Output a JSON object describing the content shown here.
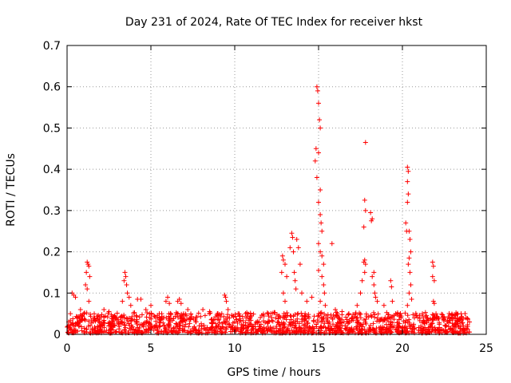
{
  "chart_data": {
    "type": "scatter",
    "title": "Day 231 of 2024, Rate Of TEC Index for receiver hkst",
    "xlabel": "GPS time / hours",
    "ylabel": "ROTI / TECUs",
    "xlim": [
      0,
      25
    ],
    "ylim": [
      0,
      0.7
    ],
    "xticks": [
      0,
      5,
      10,
      15,
      20,
      25
    ],
    "yticks": [
      0,
      0.1,
      0.2,
      0.3,
      0.4,
      0.5,
      0.6,
      0.7
    ],
    "xtick_labels": [
      "0",
      "5",
      "10",
      "15",
      "20",
      "25"
    ],
    "ytick_labels": [
      "0",
      "0.1",
      "0.2",
      "0.3",
      "0.4",
      "0.5",
      "0.6",
      "0.7"
    ],
    "grid": true,
    "marker": "+",
    "color": "#ff0000",
    "baseline_note": "dense band of points between ~0 and ~0.05 across 0-24 h",
    "points": [
      [
        0.1,
        0.03
      ],
      [
        0.2,
        0.05
      ],
      [
        0.3,
        0.1
      ],
      [
        0.4,
        0.095
      ],
      [
        0.5,
        0.09
      ],
      [
        0.6,
        0.04
      ],
      [
        0.8,
        0.06
      ],
      [
        1.0,
        0.05
      ],
      [
        1.1,
        0.12
      ],
      [
        1.15,
        0.15
      ],
      [
        1.2,
        0.175
      ],
      [
        1.25,
        0.17
      ],
      [
        1.3,
        0.165
      ],
      [
        1.35,
        0.14
      ],
      [
        1.2,
        0.11
      ],
      [
        1.3,
        0.08
      ],
      [
        1.6,
        0.04
      ],
      [
        2.2,
        0.06
      ],
      [
        2.5,
        0.055
      ],
      [
        2.9,
        0.04
      ],
      [
        3.3,
        0.08
      ],
      [
        3.4,
        0.13
      ],
      [
        3.45,
        0.15
      ],
      [
        3.5,
        0.14
      ],
      [
        3.55,
        0.12
      ],
      [
        3.6,
        0.1
      ],
      [
        3.7,
        0.09
      ],
      [
        3.8,
        0.07
      ],
      [
        4.2,
        0.085
      ],
      [
        4.4,
        0.085
      ],
      [
        4.7,
        0.06
      ],
      [
        5.0,
        0.07
      ],
      [
        5.5,
        0.05
      ],
      [
        5.9,
        0.08
      ],
      [
        6.0,
        0.09
      ],
      [
        6.1,
        0.075
      ],
      [
        6.6,
        0.08
      ],
      [
        6.7,
        0.085
      ],
      [
        6.8,
        0.075
      ],
      [
        7.2,
        0.06
      ],
      [
        8.1,
        0.06
      ],
      [
        8.5,
        0.055
      ],
      [
        9.0,
        0.05
      ],
      [
        9.4,
        0.095
      ],
      [
        9.45,
        0.09
      ],
      [
        9.5,
        0.08
      ],
      [
        9.6,
        0.06
      ],
      [
        10.2,
        0.05
      ],
      [
        11.0,
        0.045
      ],
      [
        12.0,
        0.05
      ],
      [
        12.8,
        0.15
      ],
      [
        12.85,
        0.19
      ],
      [
        12.9,
        0.18
      ],
      [
        13.0,
        0.17
      ],
      [
        13.1,
        0.14
      ],
      [
        12.9,
        0.1
      ],
      [
        13.0,
        0.08
      ],
      [
        13.3,
        0.21
      ],
      [
        13.4,
        0.245
      ],
      [
        13.45,
        0.235
      ],
      [
        13.5,
        0.2
      ],
      [
        13.55,
        0.15
      ],
      [
        13.6,
        0.13
      ],
      [
        13.7,
        0.23
      ],
      [
        13.8,
        0.21
      ],
      [
        13.9,
        0.17
      ],
      [
        13.65,
        0.11
      ],
      [
        14.0,
        0.1
      ],
      [
        14.3,
        0.08
      ],
      [
        14.6,
        0.09
      ],
      [
        14.8,
        0.42
      ],
      [
        14.85,
        0.45
      ],
      [
        14.9,
        0.6
      ],
      [
        14.95,
        0.59
      ],
      [
        15.0,
        0.56
      ],
      [
        15.05,
        0.52
      ],
      [
        15.1,
        0.5
      ],
      [
        15.0,
        0.44
      ],
      [
        14.9,
        0.38
      ],
      [
        15.1,
        0.35
      ],
      [
        15.0,
        0.32
      ],
      [
        15.1,
        0.29
      ],
      [
        15.15,
        0.27
      ],
      [
        15.2,
        0.25
      ],
      [
        15.0,
        0.22
      ],
      [
        15.1,
        0.2
      ],
      [
        15.2,
        0.19
      ],
      [
        15.3,
        0.17
      ],
      [
        15.0,
        0.155
      ],
      [
        15.2,
        0.14
      ],
      [
        15.3,
        0.12
      ],
      [
        15.35,
        0.1
      ],
      [
        15.1,
        0.08
      ],
      [
        15.4,
        0.07
      ],
      [
        15.8,
        0.22
      ],
      [
        16.0,
        0.06
      ],
      [
        16.4,
        0.055
      ],
      [
        16.8,
        0.05
      ],
      [
        17.3,
        0.07
      ],
      [
        17.5,
        0.1
      ],
      [
        17.6,
        0.13
      ],
      [
        17.7,
        0.175
      ],
      [
        17.75,
        0.18
      ],
      [
        17.8,
        0.17
      ],
      [
        17.75,
        0.15
      ],
      [
        17.8,
        0.465
      ],
      [
        17.75,
        0.325
      ],
      [
        17.8,
        0.3
      ],
      [
        17.7,
        0.26
      ],
      [
        18.1,
        0.295
      ],
      [
        18.2,
        0.28
      ],
      [
        18.15,
        0.275
      ],
      [
        18.2,
        0.14
      ],
      [
        18.3,
        0.15
      ],
      [
        18.3,
        0.12
      ],
      [
        18.35,
        0.1
      ],
      [
        18.4,
        0.09
      ],
      [
        18.5,
        0.08
      ],
      [
        18.9,
        0.07
      ],
      [
        19.3,
        0.13
      ],
      [
        19.35,
        0.115
      ],
      [
        19.4,
        0.08
      ],
      [
        19.6,
        0.05
      ],
      [
        20.2,
        0.27
      ],
      [
        20.25,
        0.25
      ],
      [
        20.3,
        0.405
      ],
      [
        20.35,
        0.395
      ],
      [
        20.3,
        0.37
      ],
      [
        20.35,
        0.34
      ],
      [
        20.3,
        0.32
      ],
      [
        20.4,
        0.25
      ],
      [
        20.45,
        0.23
      ],
      [
        20.5,
        0.2
      ],
      [
        20.4,
        0.185
      ],
      [
        20.35,
        0.17
      ],
      [
        20.45,
        0.15
      ],
      [
        20.5,
        0.12
      ],
      [
        20.4,
        0.1
      ],
      [
        20.55,
        0.085
      ],
      [
        20.3,
        0.07
      ],
      [
        21.8,
        0.175
      ],
      [
        21.85,
        0.165
      ],
      [
        21.8,
        0.14
      ],
      [
        21.9,
        0.13
      ],
      [
        21.85,
        0.08
      ],
      [
        21.9,
        0.075
      ],
      [
        22.5,
        0.04
      ],
      [
        23.1,
        0.045
      ],
      [
        23.5,
        0.05
      ],
      [
        23.8,
        0.04
      ],
      [
        24.0,
        0.03
      ]
    ]
  }
}
